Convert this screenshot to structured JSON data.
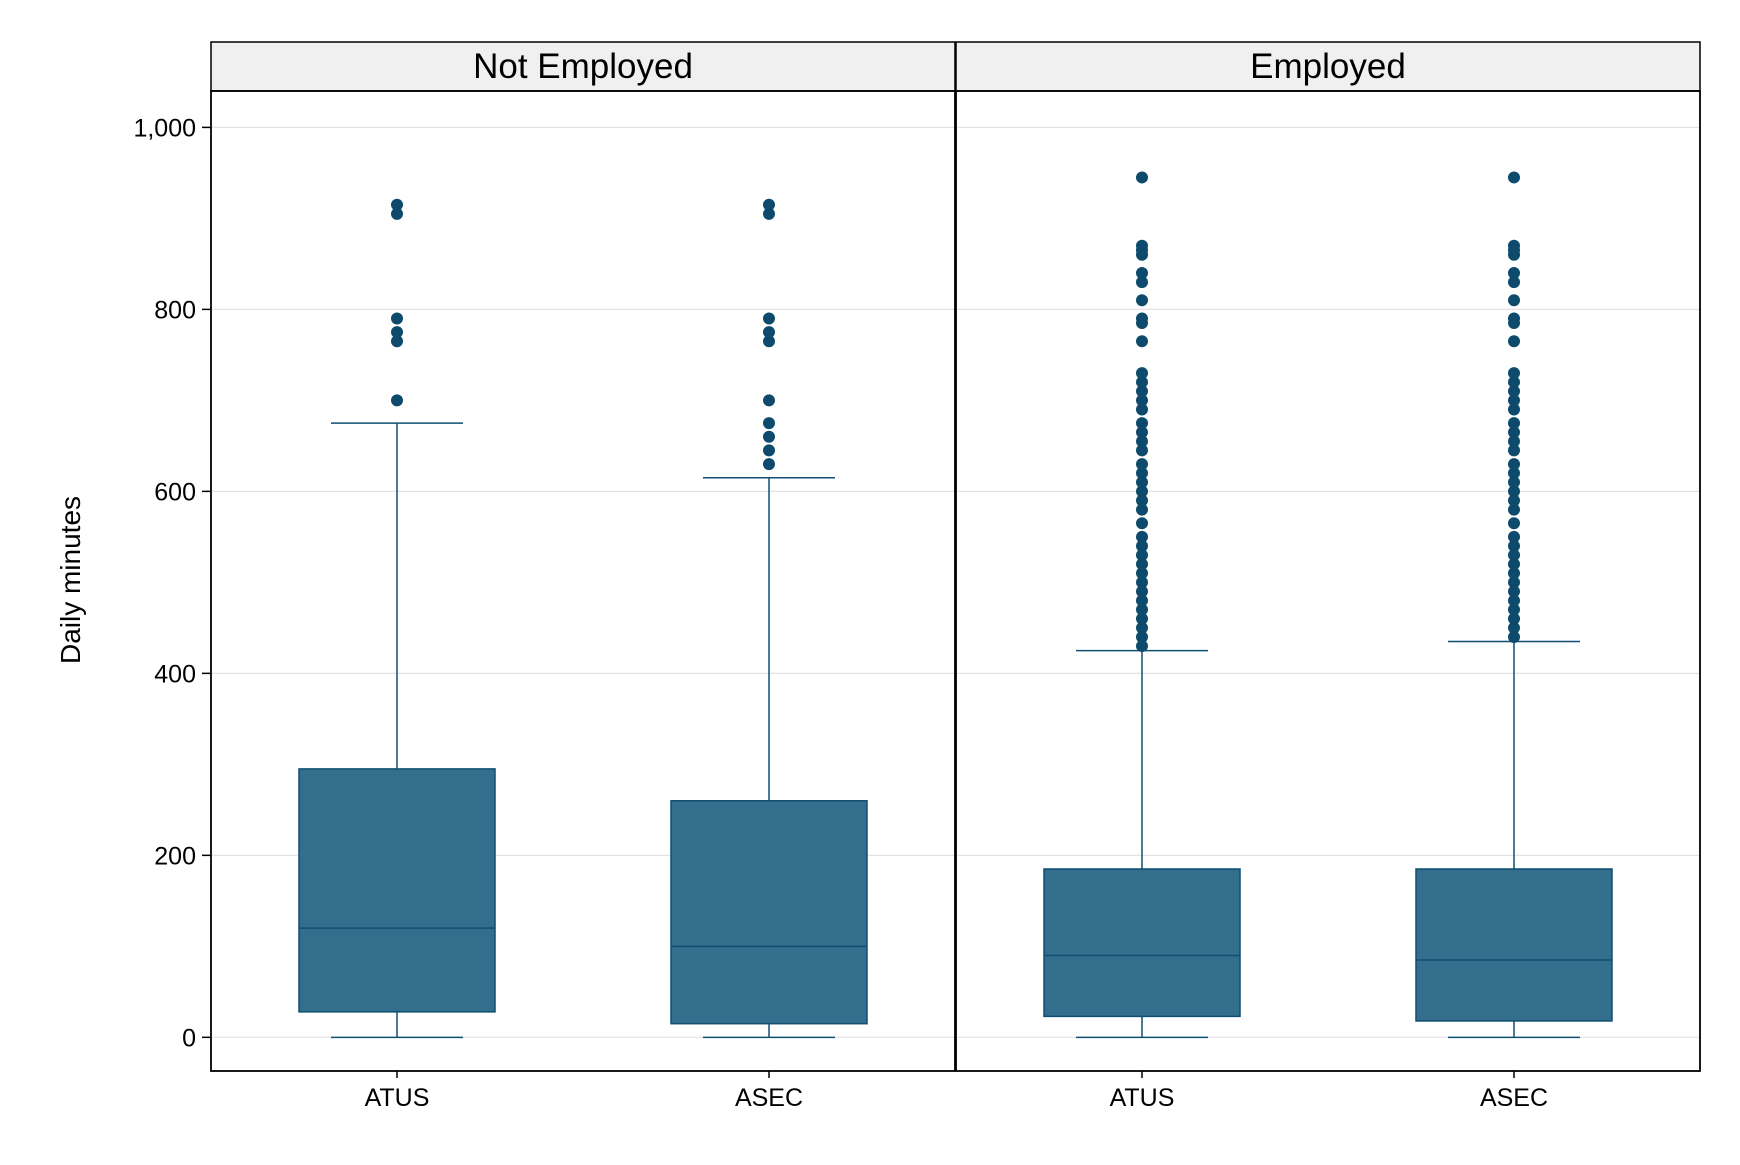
{
  "chart_data": {
    "type": "box",
    "ylabel": "Daily minutes",
    "ylim": [
      -37,
      1040
    ],
    "yticks": [
      0,
      200,
      400,
      600,
      800,
      1000
    ],
    "ytick_labels": [
      "0",
      "200",
      "400",
      "600",
      "800",
      "1,000"
    ],
    "grid": true,
    "colors": {
      "box_fill": "#336E8C",
      "box_stroke": "#0F4F72",
      "outlier": "#0D4A6B",
      "strip": "#F0F0F0",
      "grid": "#E3E3E3"
    },
    "panels": [
      {
        "title": "Not Employed",
        "categories": [
          "ATUS",
          "ASEC"
        ],
        "boxes": [
          {
            "label": "ATUS",
            "min": 0,
            "q1": 28,
            "median": 120,
            "q3": 295,
            "max": 675,
            "outliers": [
              700,
              765,
              775,
              790,
              905,
              915
            ]
          },
          {
            "label": "ASEC",
            "min": 0,
            "q1": 15,
            "median": 100,
            "q3": 260,
            "max": 615,
            "outliers": [
              630,
              645,
              660,
              675,
              700,
              765,
              775,
              790,
              905,
              915
            ]
          }
        ]
      },
      {
        "title": "Employed",
        "categories": [
          "ATUS",
          "ASEC"
        ],
        "boxes": [
          {
            "label": "ATUS",
            "min": 0,
            "q1": 23,
            "median": 90,
            "q3": 185,
            "max": 425,
            "outliers": [
              430,
              440,
              450,
              460,
              470,
              480,
              490,
              500,
              510,
              520,
              530,
              540,
              550,
              565,
              580,
              590,
              600,
              610,
              620,
              630,
              645,
              655,
              665,
              675,
              690,
              700,
              710,
              720,
              730,
              765,
              785,
              790,
              810,
              830,
              840,
              860,
              865,
              870,
              945
            ]
          },
          {
            "label": "ASEC",
            "min": 0,
            "q1": 18,
            "median": 85,
            "q3": 185,
            "max": 435,
            "outliers": [
              440,
              450,
              460,
              470,
              480,
              490,
              500,
              510,
              520,
              530,
              540,
              550,
              565,
              580,
              590,
              600,
              610,
              620,
              630,
              645,
              655,
              665,
              675,
              690,
              700,
              710,
              720,
              730,
              765,
              785,
              790,
              810,
              830,
              840,
              860,
              865,
              870,
              945
            ]
          }
        ]
      }
    ]
  }
}
